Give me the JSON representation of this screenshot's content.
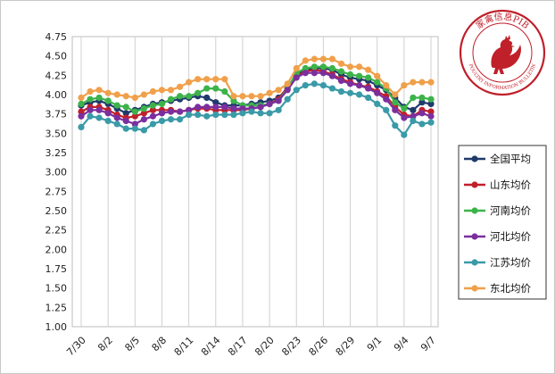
{
  "chart_data": {
    "type": "line",
    "title": "",
    "xlabel": "",
    "ylabel": "",
    "ylim": [
      1.0,
      4.75
    ],
    "yticks": [
      "1.00",
      "1.25",
      "1.50",
      "1.75",
      "2.00",
      "2.25",
      "2.50",
      "2.75",
      "3.00",
      "3.25",
      "3.50",
      "3.75",
      "4.00",
      "4.25",
      "4.50",
      "4.75"
    ],
    "x": [
      "7/30",
      "7/31",
      "8/1",
      "8/2",
      "8/3",
      "8/4",
      "8/5",
      "8/6",
      "8/7",
      "8/8",
      "8/9",
      "8/10",
      "8/11",
      "8/12",
      "8/13",
      "8/14",
      "8/15",
      "8/16",
      "8/17",
      "8/18",
      "8/19",
      "8/20",
      "8/21",
      "8/22",
      "8/23",
      "8/24",
      "8/25",
      "8/26",
      "8/27",
      "8/28",
      "8/29",
      "8/30",
      "8/31",
      "9/1",
      "9/2",
      "9/3",
      "9/4",
      "9/5",
      "9/6",
      "9/7"
    ],
    "xtick_labels": [
      "7/30",
      "8/2",
      "8/5",
      "8/8",
      "8/11",
      "8/14",
      "8/17",
      "8/20",
      "8/23",
      "8/26",
      "8/29",
      "9/1",
      "9/4",
      "9/7"
    ],
    "grid": "vertical",
    "legend_position": "right",
    "series": [
      {
        "name": "全国平均",
        "color": "#1f3a6b",
        "values": [
          3.86,
          3.9,
          3.92,
          3.88,
          3.82,
          3.76,
          3.8,
          3.84,
          3.88,
          3.9,
          3.92,
          3.94,
          3.96,
          3.98,
          3.96,
          3.9,
          3.86,
          3.86,
          3.86,
          3.88,
          3.9,
          3.92,
          3.96,
          4.08,
          4.26,
          4.32,
          4.34,
          4.34,
          4.32,
          4.26,
          4.22,
          4.2,
          4.18,
          4.12,
          4.06,
          3.96,
          3.84,
          3.8,
          3.9,
          3.88
        ]
      },
      {
        "name": "山东均价",
        "color": "#c0202a",
        "values": [
          3.78,
          3.84,
          3.84,
          3.8,
          3.74,
          3.7,
          3.72,
          3.76,
          3.8,
          3.8,
          3.8,
          3.78,
          3.8,
          3.82,
          3.82,
          3.8,
          3.8,
          3.8,
          3.8,
          3.82,
          3.84,
          3.88,
          3.94,
          4.1,
          4.24,
          4.3,
          4.32,
          4.3,
          4.26,
          4.2,
          4.16,
          4.12,
          4.1,
          4.04,
          3.98,
          3.84,
          3.74,
          3.72,
          3.8,
          3.78
        ]
      },
      {
        "name": "河南均价",
        "color": "#3cb34a",
        "values": [
          3.88,
          3.94,
          3.96,
          3.92,
          3.86,
          3.84,
          3.78,
          3.82,
          3.86,
          3.88,
          3.94,
          3.98,
          3.98,
          4.02,
          4.08,
          4.08,
          4.04,
          3.92,
          3.86,
          3.86,
          3.86,
          3.88,
          3.92,
          4.08,
          4.28,
          4.34,
          4.36,
          4.36,
          4.34,
          4.3,
          4.26,
          4.24,
          4.22,
          4.16,
          4.08,
          3.9,
          3.82,
          3.96,
          3.96,
          3.94
        ]
      },
      {
        "name": "河北均价",
        "color": "#7b2f9e",
        "values": [
          3.72,
          3.8,
          3.8,
          3.76,
          3.7,
          3.66,
          3.62,
          3.68,
          3.72,
          3.76,
          3.78,
          3.78,
          3.8,
          3.84,
          3.84,
          3.84,
          3.84,
          3.82,
          3.82,
          3.82,
          3.84,
          3.88,
          3.92,
          4.06,
          4.22,
          4.28,
          4.28,
          4.28,
          4.24,
          4.18,
          4.14,
          4.12,
          4.08,
          4.02,
          3.94,
          3.8,
          3.7,
          3.72,
          3.76,
          3.72
        ]
      },
      {
        "name": "江苏均价",
        "color": "#3a9aa8",
        "values": [
          3.58,
          3.72,
          3.7,
          3.66,
          3.62,
          3.56,
          3.56,
          3.54,
          3.62,
          3.66,
          3.68,
          3.68,
          3.74,
          3.74,
          3.72,
          3.74,
          3.74,
          3.74,
          3.76,
          3.78,
          3.76,
          3.76,
          3.8,
          3.94,
          4.06,
          4.12,
          4.14,
          4.12,
          4.08,
          4.04,
          4.02,
          4.0,
          3.96,
          3.88,
          3.8,
          3.6,
          3.48,
          3.66,
          3.62,
          3.64
        ]
      },
      {
        "name": "东北均价",
        "color": "#f0a04b",
        "values": [
          3.96,
          4.04,
          4.06,
          4.02,
          4.0,
          3.98,
          3.96,
          4.0,
          4.04,
          4.06,
          4.06,
          4.1,
          4.16,
          4.2,
          4.2,
          4.2,
          4.2,
          3.98,
          3.98,
          3.98,
          3.98,
          4.02,
          4.06,
          4.14,
          4.34,
          4.44,
          4.46,
          4.46,
          4.46,
          4.4,
          4.36,
          4.36,
          4.32,
          4.24,
          4.12,
          4.0,
          4.12,
          4.16,
          4.16,
          4.16
        ]
      }
    ]
  },
  "logo": {
    "chinese": "家禽信息PIB",
    "english": "POULTRY INFORMATION BULLETIN"
  }
}
